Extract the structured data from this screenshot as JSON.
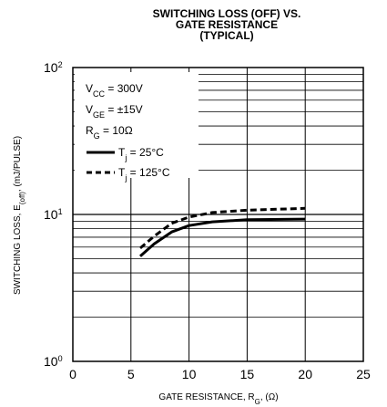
{
  "chart_data": {
    "type": "line",
    "title": [
      "SWITCHING LOSS (OFF) VS.",
      "GATE RESISTANCE",
      "(TYPICAL)"
    ],
    "xlabel": "GATE RESISTANCE, R_G, (Ω)",
    "ylabel": "SWITCHING LOSS, E_(off), (mJ/PULSE)",
    "x_scale": "linear",
    "y_scale": "log",
    "xlim": [
      0,
      25
    ],
    "ylim": [
      1,
      100
    ],
    "x_ticks": [
      "0",
      "5",
      "10",
      "15",
      "20",
      "25"
    ],
    "y_ticks": [
      {
        "value": 1,
        "base": "10",
        "exp": "0"
      },
      {
        "value": 10,
        "base": "10",
        "exp": "1"
      },
      {
        "value": 100,
        "base": "10",
        "exp": "2"
      }
    ],
    "grid": true,
    "legend_position": "top-left",
    "conditions": [
      "V_CC = 300V",
      "V_GE = ±15V",
      "R_G = 10Ω"
    ],
    "series": [
      {
        "name": "T_j = 25°C",
        "style": "solid",
        "x": [
          5.8,
          7,
          8.5,
          10,
          12,
          15,
          20
        ],
        "y": [
          5.2,
          6.3,
          7.6,
          8.4,
          8.9,
          9.2,
          9.3
        ]
      },
      {
        "name": "T_j = 125°C",
        "style": "dashed",
        "x": [
          5.8,
          7,
          8.5,
          10,
          12,
          15,
          20
        ],
        "y": [
          5.9,
          7.1,
          8.7,
          9.6,
          10.3,
          10.7,
          11.0
        ]
      }
    ]
  }
}
